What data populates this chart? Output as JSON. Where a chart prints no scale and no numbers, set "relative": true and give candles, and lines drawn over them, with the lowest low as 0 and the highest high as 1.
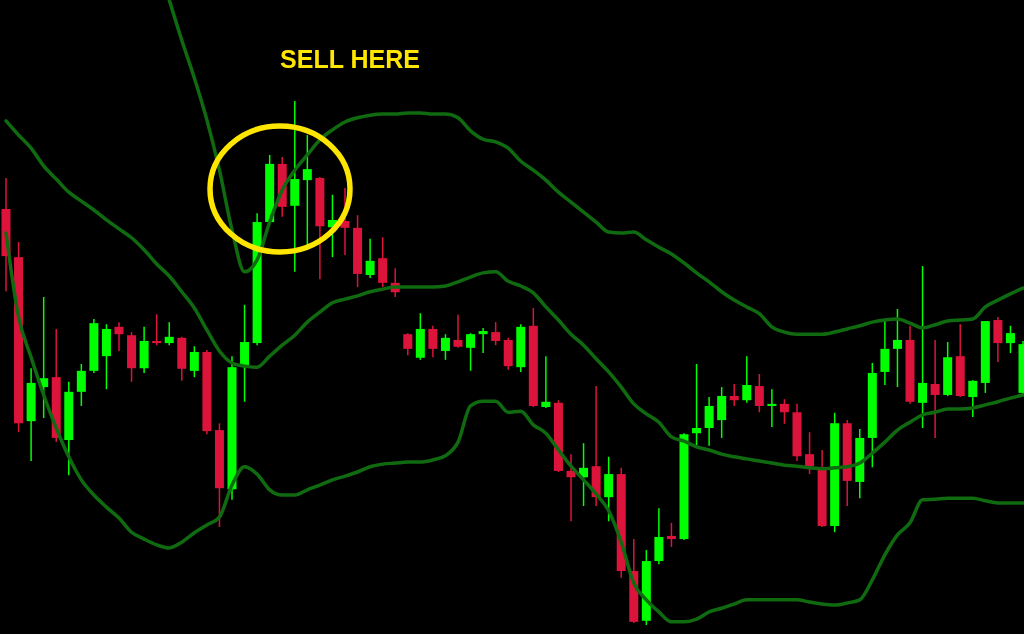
{
  "chart_data": {
    "type": "candlestick",
    "relative": true,
    "categories": [
      null,
      null,
      null,
      null,
      null,
      null,
      null,
      null,
      null,
      null,
      null,
      null,
      null,
      null,
      null,
      null,
      null,
      null,
      null,
      null,
      null,
      null,
      null,
      null,
      null,
      null,
      null,
      null,
      null,
      null,
      null,
      null,
      null,
      null,
      null,
      null,
      null,
      null,
      null,
      null,
      null,
      null,
      null,
      null,
      null,
      null,
      null,
      null,
      null,
      null,
      null,
      null,
      null,
      null,
      null,
      null,
      null,
      null,
      null,
      null,
      null,
      null,
      null,
      null,
      null,
      null,
      null,
      null,
      null,
      null,
      null,
      null,
      null,
      null,
      null,
      null,
      null,
      null,
      null,
      null,
      null,
      null
    ],
    "ohlc": [
      [
        0.794,
        0.853,
        0.637,
        0.704
      ],
      [
        0.702,
        0.731,
        0.368,
        0.385
      ],
      [
        0.389,
        0.49,
        0.313,
        0.462
      ],
      [
        0.454,
        0.626,
        0.395,
        0.471
      ],
      [
        0.473,
        0.565,
        0.349,
        0.357
      ],
      [
        0.353,
        0.464,
        0.286,
        0.445
      ],
      [
        0.445,
        0.498,
        0.418,
        0.485
      ],
      [
        0.485,
        0.584,
        0.481,
        0.576
      ],
      [
        0.513,
        0.574,
        0.45,
        0.565
      ],
      [
        0.569,
        0.578,
        0.523,
        0.555
      ],
      [
        0.553,
        0.559,
        0.464,
        0.49
      ],
      [
        0.49,
        0.569,
        0.481,
        0.542
      ],
      [
        0.542,
        0.593,
        0.534,
        0.538
      ],
      [
        0.538,
        0.578,
        0.534,
        0.55
      ],
      [
        0.548,
        0.55,
        0.466,
        0.489
      ],
      [
        0.485,
        0.532,
        0.473,
        0.521
      ],
      [
        0.521,
        0.525,
        0.364,
        0.37
      ],
      [
        0.372,
        0.385,
        0.187,
        0.261
      ],
      [
        0.259,
        0.513,
        0.239,
        0.492
      ],
      [
        0.496,
        0.611,
        0.426,
        0.54
      ],
      [
        0.538,
        0.786,
        0.534,
        0.769
      ],
      [
        0.769,
        0.897,
        0.765,
        0.88
      ],
      [
        0.88,
        0.893,
        0.779,
        0.798
      ],
      [
        0.8,
        1,
        0.674,
        0.851
      ],
      [
        0.849,
        0.935,
        0.725,
        0.87
      ],
      [
        0.853,
        0.855,
        0.66,
        0.761
      ],
      [
        0.759,
        0.821,
        0.702,
        0.773
      ],
      [
        0.771,
        0.834,
        0.706,
        0.758
      ],
      [
        0.758,
        0.782,
        0.645,
        0.67
      ],
      [
        0.668,
        0.737,
        0.662,
        0.695
      ],
      [
        0.7,
        0.74,
        0.645,
        0.653
      ],
      [
        0.653,
        0.681,
        0.626,
        0.635
      ],
      [
        0.555,
        0.557,
        0.515,
        0.527
      ],
      [
        0.51,
        0.595,
        0.506,
        0.565
      ],
      [
        0.565,
        0.571,
        0.511,
        0.527
      ],
      [
        0.523,
        0.555,
        0.506,
        0.548
      ],
      [
        0.544,
        0.592,
        0.529,
        0.531
      ],
      [
        0.529,
        0.557,
        0.485,
        0.555
      ],
      [
        0.555,
        0.567,
        0.519,
        0.561
      ],
      [
        0.559,
        0.578,
        0.534,
        0.542
      ],
      [
        0.544,
        0.548,
        0.487,
        0.494
      ],
      [
        0.492,
        0.574,
        0.483,
        0.569
      ],
      [
        0.571,
        0.605,
        0.416,
        0.418
      ],
      [
        0.416,
        0.513,
        0.414,
        0.426
      ],
      [
        0.424,
        0.429,
        0.292,
        0.294
      ],
      [
        0.294,
        0.326,
        0.198,
        0.282
      ],
      [
        0.282,
        0.347,
        0.227,
        0.3
      ],
      [
        0.303,
        0.456,
        0.227,
        0.244
      ],
      [
        0.244,
        0.321,
        0.198,
        0.288
      ],
      [
        0.288,
        0.3,
        0.09,
        0.103
      ],
      [
        0.103,
        0.164,
        0.004,
        0.006
      ],
      [
        0.008,
        0.143,
        0,
        0.122
      ],
      [
        0.122,
        0.223,
        0.116,
        0.168
      ],
      [
        0.17,
        0.195,
        0.149,
        0.164
      ],
      [
        0.164,
        0.366,
        0.162,
        0.364
      ],
      [
        0.366,
        0.498,
        0.343,
        0.376
      ],
      [
        0.376,
        0.435,
        0.342,
        0.418
      ],
      [
        0.391,
        0.454,
        0.357,
        0.437
      ],
      [
        0.437,
        0.46,
        0.418,
        0.429
      ],
      [
        0.429,
        0.513,
        0.424,
        0.458
      ],
      [
        0.456,
        0.479,
        0.406,
        0.418
      ],
      [
        0.418,
        0.45,
        0.378,
        0.422
      ],
      [
        0.422,
        0.431,
        0.384,
        0.406
      ],
      [
        0.406,
        0.422,
        0.313,
        0.322
      ],
      [
        0.326,
        0.368,
        0.288,
        0.303
      ],
      [
        0.296,
        0.334,
        0.187,
        0.189
      ],
      [
        0.189,
        0.405,
        0.177,
        0.385
      ],
      [
        0.385,
        0.391,
        0.227,
        0.275
      ],
      [
        0.273,
        0.374,
        0.242,
        0.357
      ],
      [
        0.357,
        0.5,
        0.301,
        0.481
      ],
      [
        0.483,
        0.584,
        0.458,
        0.527
      ],
      [
        0.527,
        0.603,
        0.454,
        0.544
      ],
      [
        0.544,
        0.571,
        0.422,
        0.426
      ],
      [
        0.424,
        0.685,
        0.376,
        0.462
      ],
      [
        0.46,
        0.544,
        0.357,
        0.439
      ],
      [
        0.439,
        0.54,
        0.437,
        0.511
      ],
      [
        0.513,
        0.574,
        0.435,
        0.437
      ],
      [
        0.435,
        0.467,
        0.397,
        0.466
      ],
      [
        0.462,
        0.58,
        0.443,
        0.58
      ],
      [
        0.582,
        0.588,
        0.502,
        0.538
      ],
      [
        0.538,
        0.571,
        0.519,
        0.557
      ],
      [
        0.443,
        0.542,
        0.439,
        0.536
      ]
    ],
    "colors": [
      "#dc143c",
      "#dc143c",
      "#00ff00",
      "#00ff00",
      "#dc143c",
      "#00ff00",
      "#00ff00",
      "#00ff00",
      "#00ff00",
      "#dc143c",
      "#dc143c",
      "#00ff00",
      "#dc143c",
      "#00ff00",
      "#dc143c",
      "#00ff00",
      "#dc143c",
      "#dc143c",
      "#00ff00",
      "#00ff00",
      "#00ff00",
      "#00ff00",
      "#dc143c",
      "#00ff00",
      "#00ff00",
      "#dc143c",
      "#00ff00",
      "#dc143c",
      "#dc143c",
      "#00ff00",
      "#dc143c",
      "#dc143c",
      "#dc143c",
      "#00ff00",
      "#dc143c",
      "#00ff00",
      "#dc143c",
      "#00ff00",
      "#00ff00",
      "#dc143c",
      "#dc143c",
      "#00ff00",
      "#dc143c",
      "#00ff00",
      "#dc143c",
      "#dc143c",
      "#00ff00",
      "#dc143c",
      "#00ff00",
      "#dc143c",
      "#dc143c",
      "#00ff00",
      "#00ff00",
      "#dc143c",
      "#00ff00",
      "#00ff00",
      "#00ff00",
      "#00ff00",
      "#dc143c",
      "#00ff00",
      "#dc143c",
      "#00ff00",
      "#dc143c",
      "#dc143c",
      "#dc143c",
      "#dc143c",
      "#00ff00",
      "#dc143c",
      "#00ff00",
      "#00ff00",
      "#00ff00",
      "#00ff00",
      "#dc143c",
      "#00ff00",
      "#dc143c",
      "#00ff00",
      "#dc143c",
      "#00ff00",
      "#00ff00",
      "#dc143c",
      "#00ff00",
      "#00ff00"
    ],
    "series": [
      {
        "type": "line",
        "color": "#106a10",
        "values": [
          null,
          null,
          null,
          null,
          null,
          null,
          null,
          null,
          null,
          null,
          null,
          null,
          null,
          1.193,
          1.116,
          1.044,
          0.964,
          0.868,
          0.754,
          0.674,
          0.697,
          0.769,
          0.83,
          0.868,
          0.897,
          0.926,
          0.945,
          0.96,
          0.968,
          0.973,
          0.975,
          0.975,
          0.977,
          0.977,
          0.975,
          0.975,
          0.968,
          0.943,
          0.927,
          0.922,
          0.91,
          0.885,
          0.868,
          0.849,
          0.826,
          0.807,
          0.788,
          0.769,
          0.75,
          0.748,
          0.75,
          0.735,
          0.721,
          0.708,
          0.691,
          0.672,
          0.655,
          0.636,
          0.62,
          0.607,
          0.594,
          0.569,
          0.559,
          0.555,
          0.555,
          0.555,
          0.559,
          0.565,
          0.571,
          0.578,
          0.582,
          0.584,
          0.576,
          0.567,
          0.573,
          0.58,
          0.582,
          0.584,
          0.607,
          0.62,
          0.632,
          0.643
        ]
      },
      {
        "type": "line",
        "color": "#106a10",
        "values": [
          0.962,
          0.935,
          0.91,
          0.876,
          0.851,
          0.826,
          0.809,
          0.792,
          0.773,
          0.756,
          0.739,
          0.716,
          0.689,
          0.666,
          0.636,
          0.605,
          0.563,
          0.523,
          0.5,
          0.494,
          0.492,
          0.513,
          0.534,
          0.553,
          0.578,
          0.597,
          0.615,
          0.622,
          0.628,
          0.636,
          0.641,
          0.645,
          0.645,
          0.645,
          0.645,
          0.647,
          0.655,
          0.664,
          0.672,
          0.674,
          0.656,
          0.647,
          0.634,
          0.607,
          0.582,
          0.555,
          0.534,
          0.508,
          0.483,
          0.454,
          0.422,
          0.403,
          0.387,
          0.359,
          0.351,
          0.34,
          0.334,
          0.326,
          0.321,
          0.317,
          0.313,
          0.309,
          0.305,
          0.303,
          0.3,
          0.298,
          0.3,
          0.302,
          0.309,
          0.328,
          0.349,
          0.372,
          0.387,
          0.401,
          0.406,
          0.412,
          0.412,
          0.414,
          0.42,
          0.426,
          0.433,
          0.439
        ]
      },
      {
        "type": "line",
        "color": "#106a10",
        "values": [
          0.748,
          0.588,
          0.511,
          0.439,
          0.376,
          0.321,
          0.277,
          0.248,
          0.225,
          0.204,
          0.177,
          0.164,
          0.153,
          0.147,
          0.158,
          0.176,
          0.191,
          0.206,
          0.267,
          0.302,
          0.288,
          0.258,
          0.248,
          0.248,
          0.258,
          0.267,
          0.277,
          0.284,
          0.292,
          0.302,
          0.307,
          0.309,
          0.311,
          0.311,
          0.315,
          0.323,
          0.349,
          0.418,
          0.427,
          0.427,
          0.406,
          0.408,
          0.382,
          0.366,
          0.334,
          0.303,
          0.277,
          0.25,
          0.218,
          0.158,
          0.08,
          0.048,
          0.025,
          0.006,
          0.006,
          0.011,
          0.025,
          0.032,
          0.04,
          0.048,
          0.048,
          0.048,
          0.048,
          0.048,
          0.044,
          0.04,
          0.038,
          0.042,
          0.048,
          0.086,
          0.134,
          0.172,
          0.195,
          0.239,
          0.24,
          0.242,
          0.242,
          0.242,
          0.237,
          0.233,
          0.233,
          0.233
        ]
      }
    ],
    "annotations": [
      "SELL HERE"
    ]
  }
}
